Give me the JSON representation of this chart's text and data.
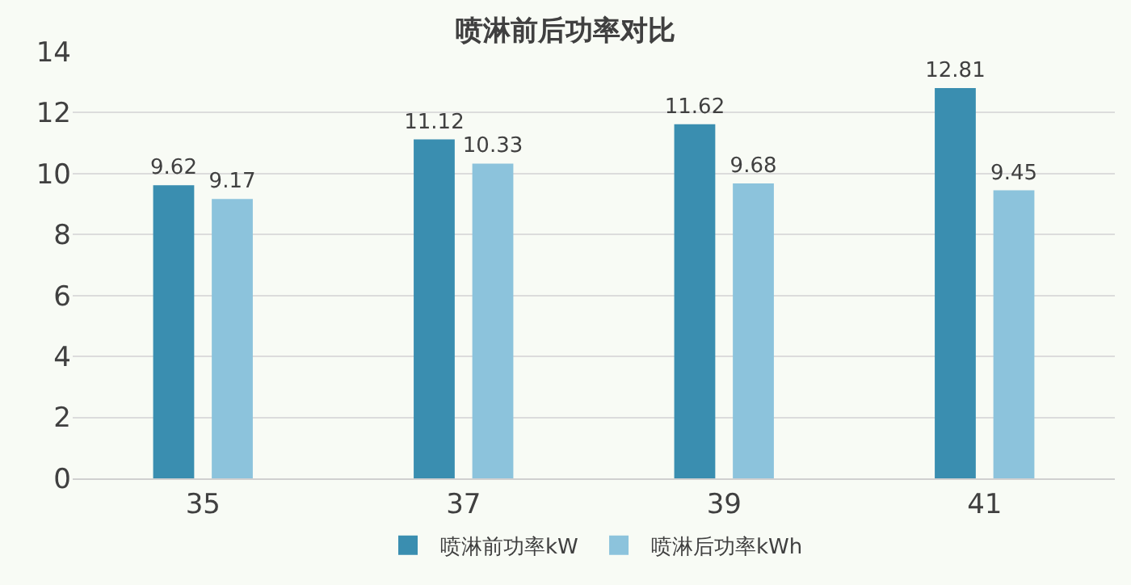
{
  "chart_data": {
    "type": "bar",
    "title": "喷淋前后功率对比",
    "categories": [
      "35",
      "37",
      "39",
      "41"
    ],
    "series": [
      {
        "name": "喷淋前功率kW",
        "color": "#3a8eb0",
        "values": [
          9.62,
          11.12,
          11.62,
          12.81
        ]
      },
      {
        "name": "喷淋后功率kWh",
        "color": "#8cc3dc",
        "values": [
          9.17,
          10.33,
          9.68,
          9.45
        ]
      }
    ],
    "ylim": [
      0,
      14
    ],
    "yticks": [
      0,
      2,
      4,
      6,
      8,
      10,
      12,
      14
    ],
    "grid": "y",
    "legend": "bottom",
    "data_labels": true
  }
}
